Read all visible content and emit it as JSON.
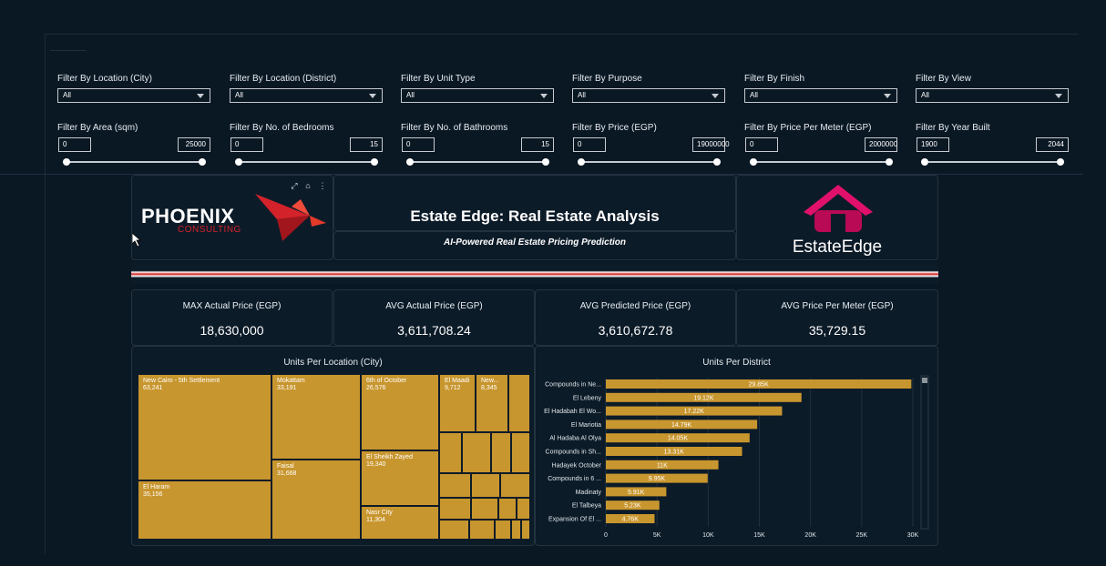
{
  "filters_row1": [
    {
      "label": "Filter By Location (City)",
      "value": "All"
    },
    {
      "label": "Filter By Location (District)",
      "value": "All"
    },
    {
      "label": "Filter By Unit Type",
      "value": "All"
    },
    {
      "label": "Filter By Purpose",
      "value": "All"
    },
    {
      "label": "Filter By Finish",
      "value": "All"
    },
    {
      "label": "Filter By View",
      "value": "All"
    }
  ],
  "filters_row2": [
    {
      "label": "Filter By Area (sqm)",
      "min": "0",
      "max": "25000"
    },
    {
      "label": "Filter By No. of Bedrooms",
      "min": "0",
      "max": "15"
    },
    {
      "label": "Filter By No. of Bathrooms",
      "min": "0",
      "max": "15"
    },
    {
      "label": "Filter By Price (EGP)",
      "min": "0",
      "max": "19000000"
    },
    {
      "label": "Filter By Price Per Meter (EGP)",
      "min": "0",
      "max": "2000000"
    },
    {
      "label": "Filter By Year Built",
      "min": "1900",
      "max": "2044"
    }
  ],
  "header": {
    "logo_left_main": "PHOENIX",
    "logo_left_sub": "CONSULTING",
    "title": "Estate Edge: Real Estate Analysis",
    "subtitle": "AI-Powered Real Estate Pricing Prediction",
    "logo_right": "EstateEdge",
    "colors": {
      "accent": "#c8962e",
      "brand_pink": "#e0106b",
      "phoenix_red": "#d3222a",
      "background": "#0a1824"
    }
  },
  "kpis": [
    {
      "label": "MAX Actual Price (EGP)",
      "value": "18,630,000"
    },
    {
      "label": "AVG Actual Price (EGP)",
      "value": "3,611,708.24"
    },
    {
      "label": "AVG Predicted Price (EGP)",
      "value": "3,610,672.78"
    },
    {
      "label": "AVG Price Per Meter (EGP)",
      "value": "35,729.15"
    }
  ],
  "chart_data": [
    {
      "type": "treemap",
      "title": "Units Per Location (City)",
      "items": [
        {
          "label": "New Cairo - 5th Settlement",
          "value": "63,241"
        },
        {
          "label": "El Haram",
          "value": "35,156"
        },
        {
          "label": "Mokattam",
          "value": "33,191"
        },
        {
          "label": "Faisal",
          "value": "31,668"
        },
        {
          "label": "6th of October",
          "value": "26,576"
        },
        {
          "label": "El Sheikh Zayed",
          "value": "19,340"
        },
        {
          "label": "Nasr City",
          "value": "11,304"
        },
        {
          "label": "El Maadi",
          "value": "9,712"
        },
        {
          "label": "New...",
          "value": "8,345"
        }
      ]
    },
    {
      "type": "bar",
      "orientation": "horizontal",
      "title": "Units Per District",
      "categories": [
        "Compounds in Ne...",
        "El Lebeny",
        "El Hadabah El Wo...",
        "El Mariotia",
        "Al Hadaba Al Olya",
        "Compounds in Sh...",
        "Hadayek October",
        "Compounds in 6 ...",
        "Madinaty",
        "El Talbeya",
        "Expansion Of El ..."
      ],
      "values": [
        29850,
        19120,
        17220,
        14790,
        14050,
        13310,
        11000,
        9950,
        5910,
        5230,
        4760
      ],
      "data_labels": [
        "29.85K",
        "19.12K",
        "17.22K",
        "14.79K",
        "14.05K",
        "13.31K",
        "11K",
        "9.95K",
        "5.91K",
        "5.23K",
        "4.76K"
      ],
      "xticks": [
        "0",
        "5K",
        "10K",
        "15K",
        "20K",
        "25K",
        "30K"
      ],
      "xlim": [
        0,
        30000
      ]
    }
  ]
}
